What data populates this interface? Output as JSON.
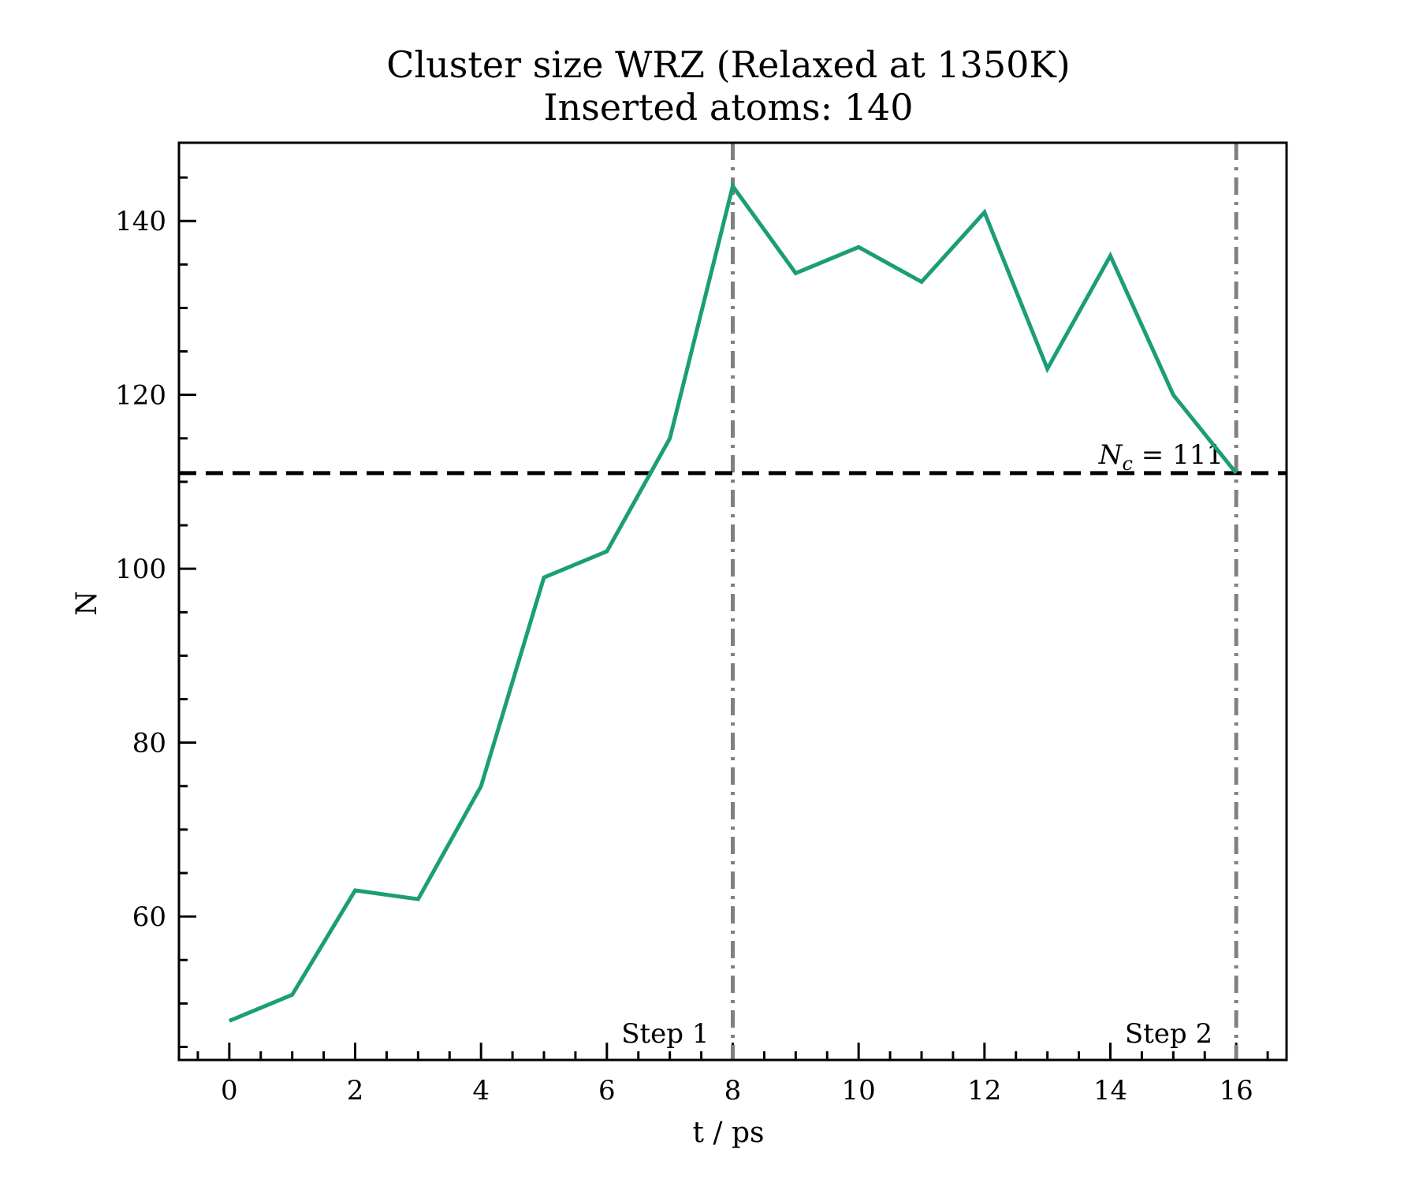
{
  "chart_data": {
    "type": "line",
    "title": [
      "Cluster size WRZ (Relaxed at 1350K)",
      "Inserted atoms: 140"
    ],
    "xlabel": "t / ps",
    "ylabel": "N",
    "xlim": [
      -0.8,
      16.8
    ],
    "ylim": [
      43.5,
      149
    ],
    "xticks": [
      0,
      2,
      4,
      6,
      8,
      10,
      12,
      14,
      16
    ],
    "yticks": [
      60,
      80,
      100,
      120,
      140
    ],
    "x_minor_step": 0.5,
    "y_minor_step": 5,
    "grid": false,
    "series": [
      {
        "color": "#1b9e77",
        "x": [
          0,
          1,
          2,
          3,
          4,
          5,
          6,
          7,
          8,
          9,
          10,
          11,
          12,
          13,
          14,
          15,
          16
        ],
        "y": [
          48,
          51,
          63,
          62,
          75,
          99,
          102,
          115,
          144,
          134,
          137,
          133,
          141,
          123,
          136,
          120,
          111
        ]
      }
    ],
    "hlines": [
      {
        "y": 111,
        "style": "dashed",
        "color": "#000000",
        "label": "N_c = 111"
      }
    ],
    "vlines": [
      {
        "x": 8,
        "style": "dashdot",
        "color": "#808080",
        "label": "Step 1"
      },
      {
        "x": 16,
        "style": "dashdot",
        "color": "#808080",
        "label": "Step 2"
      }
    ]
  }
}
